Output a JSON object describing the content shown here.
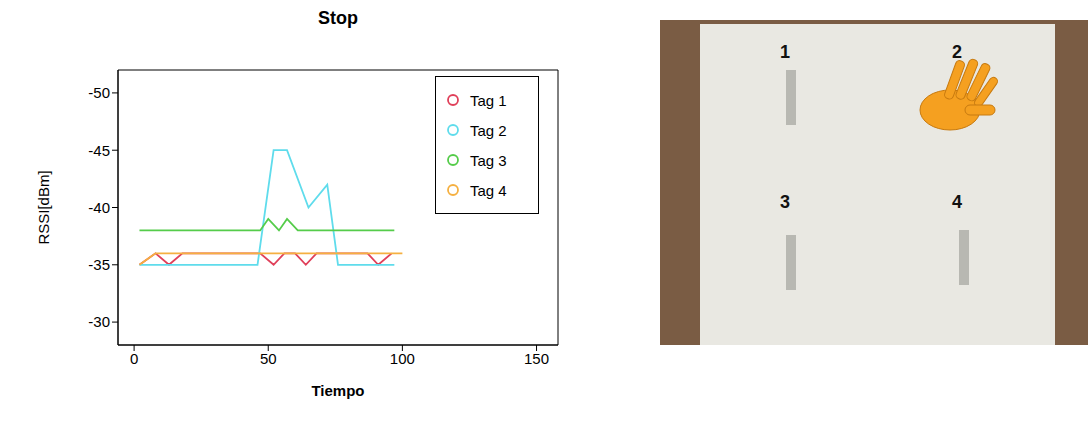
{
  "chart_data": {
    "type": "line",
    "title": "Stop",
    "x_label": "Tiempo",
    "y_label": "RSSI[dBm]",
    "xlim": [
      -6,
      158
    ],
    "xticks": [
      0,
      50,
      100,
      150
    ],
    "ylim": [
      -28,
      -52
    ],
    "yticks": [
      -50,
      -45,
      -40,
      -35,
      -30
    ],
    "legend": "top-right",
    "series": [
      {
        "name": "Tag 1",
        "color": "#e0405a",
        "marker": "circle",
        "x": [
          2,
          8,
          13,
          18,
          47,
          52,
          56,
          60,
          64,
          68,
          87,
          91,
          96
        ],
        "values": [
          -35,
          -36,
          -35,
          -36,
          -36,
          -35,
          -36,
          -36,
          -35,
          -36,
          -36,
          -35,
          -36
        ]
      },
      {
        "name": "Tag 2",
        "color": "#5fdcec",
        "marker": "circle",
        "x": [
          2,
          46,
          52,
          57,
          65,
          72,
          76,
          97
        ],
        "values": [
          -35,
          -35,
          -45,
          -45,
          -40,
          -42,
          -35,
          -35
        ]
      },
      {
        "name": "Tag 3",
        "color": "#55cc4a",
        "marker": "circle",
        "x": [
          2,
          47,
          50,
          54,
          57,
          61,
          97
        ],
        "values": [
          -38,
          -38,
          -39,
          -38,
          -39,
          -38,
          -38
        ]
      },
      {
        "name": "Tag 4",
        "color": "#f5b041",
        "marker": "circle",
        "x": [
          2,
          8,
          100
        ],
        "values": [
          -35,
          -36,
          -36
        ]
      }
    ],
    "annotations": [
      "1",
      "2",
      "3",
      "4"
    ]
  }
}
